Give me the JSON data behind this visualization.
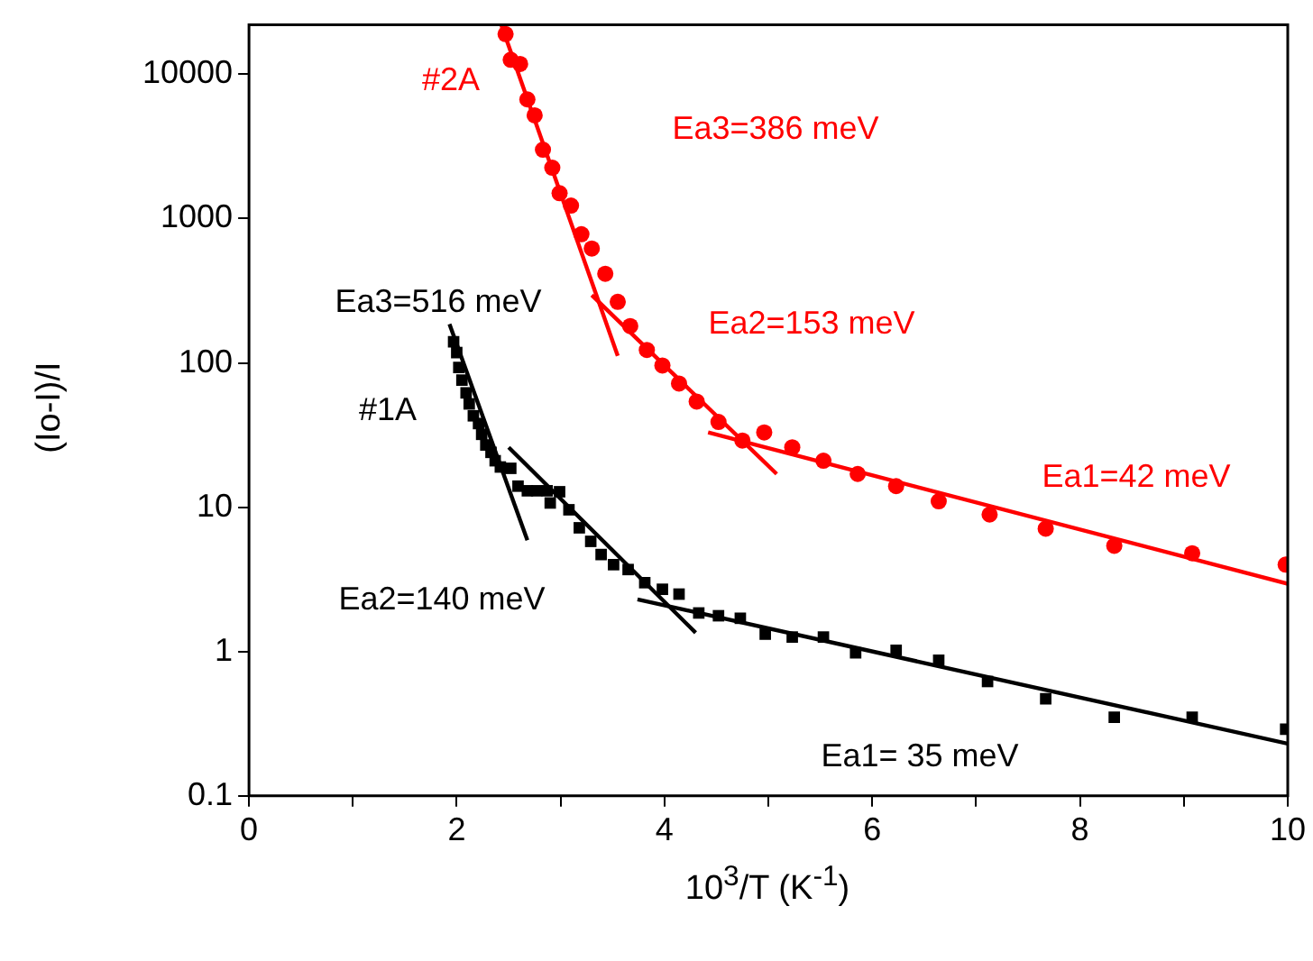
{
  "chart_data": {
    "type": "scatter",
    "xlabel": "10$^{3}$/T (K$^{-1}$)",
    "ylabel": "(Io-I)/I",
    "log": "y",
    "grid": false,
    "legend": false,
    "xlim": [
      0,
      10
    ],
    "xticks": [
      0,
      {
        "value": 1,
        "label": null
      },
      2,
      {
        "value": 3,
        "label": null
      },
      4,
      {
        "value": 5,
        "label": null
      },
      6,
      {
        "value": 7,
        "label": null
      },
      8,
      {
        "value": 9,
        "label": null
      },
      10
    ],
    "ylim": [
      0.1,
      22000
    ],
    "yticks": [
      0.1,
      1,
      10,
      100,
      1000,
      10000
    ],
    "series": [
      {
        "marker": "circle",
        "color": "#ff0000",
        "x": [
          2.47,
          2.52,
          2.61,
          2.68,
          2.75,
          2.83,
          2.92,
          2.99,
          3.1,
          3.2,
          3.3,
          3.43,
          3.55,
          3.67,
          3.83,
          3.98,
          4.14,
          4.31,
          4.52,
          4.75,
          4.96,
          5.23,
          5.53,
          5.86,
          6.23,
          6.64,
          7.13,
          7.67,
          8.33,
          9.08,
          9.98
        ],
        "values": [
          19000,
          12600,
          11800,
          6700,
          5200,
          3000,
          2250,
          1500,
          1230,
          780,
          620,
          415,
          265,
          180,
          123,
          96,
          72,
          54,
          39,
          29,
          33,
          26,
          21,
          17,
          14,
          11,
          8.9,
          7.1,
          5.4,
          4.8,
          4.0
        ]
      },
      {
        "type": "line",
        "marker": "none",
        "color": "#ff0000",
        "x": [
          2.43,
          3.55
        ],
        "values": [
          21900,
          112
        ]
      },
      {
        "type": "line",
        "marker": "none",
        "color": "#ff0000",
        "x": [
          3.3,
          5.08
        ],
        "values": [
          295,
          17
        ]
      },
      {
        "type": "line",
        "marker": "none",
        "color": "#ff0000",
        "x": [
          4.42,
          10
        ],
        "values": [
          33,
          2.95
        ]
      },
      {
        "marker": "square",
        "color": "#000000",
        "x": [
          1.97,
          2.0,
          2.02,
          2.05,
          2.09,
          2.12,
          2.16,
          2.21,
          2.24,
          2.28,
          2.33,
          2.37,
          2.42,
          2.52,
          2.59,
          2.68,
          2.77,
          2.87,
          2.9,
          2.99,
          3.08,
          3.18,
          3.29,
          3.39,
          3.51,
          3.65,
          3.81,
          3.98,
          4.14,
          4.33,
          4.52,
          4.73,
          4.97,
          5.23,
          5.53,
          5.84,
          6.23,
          6.64,
          7.11,
          7.67,
          8.33,
          9.08,
          9.98
        ],
        "values": [
          140,
          118,
          93,
          76,
          62,
          52,
          43,
          38,
          32,
          27,
          24,
          21,
          19,
          18.6,
          14,
          13,
          13,
          13,
          10.7,
          12.8,
          9.6,
          7.2,
          5.8,
          4.7,
          4.0,
          3.7,
          3.0,
          2.7,
          2.5,
          1.85,
          1.77,
          1.7,
          1.32,
          1.26,
          1.26,
          0.98,
          1.02,
          0.87,
          0.62,
          0.47,
          0.35,
          0.35,
          0.29
        ]
      },
      {
        "type": "line",
        "marker": "none",
        "color": "#000000",
        "x": [
          1.93,
          2.68
        ],
        "values": [
          186,
          5.9
        ]
      },
      {
        "type": "line",
        "marker": "none",
        "color": "#000000",
        "x": [
          2.5,
          4.3
        ],
        "values": [
          26,
          1.35
        ]
      },
      {
        "type": "line",
        "marker": "none",
        "color": "#000000",
        "x": [
          3.74,
          10
        ],
        "values": [
          2.3,
          0.23
        ]
      }
    ],
    "annotations": [
      "#2A",
      "Ea3=386 meV",
      "Ea2=153 meV",
      "Ea1=42 meV",
      "Ea3=516 meV",
      "#1A",
      "Ea2=140 meV",
      "Ea1= 35 meV"
    ]
  }
}
